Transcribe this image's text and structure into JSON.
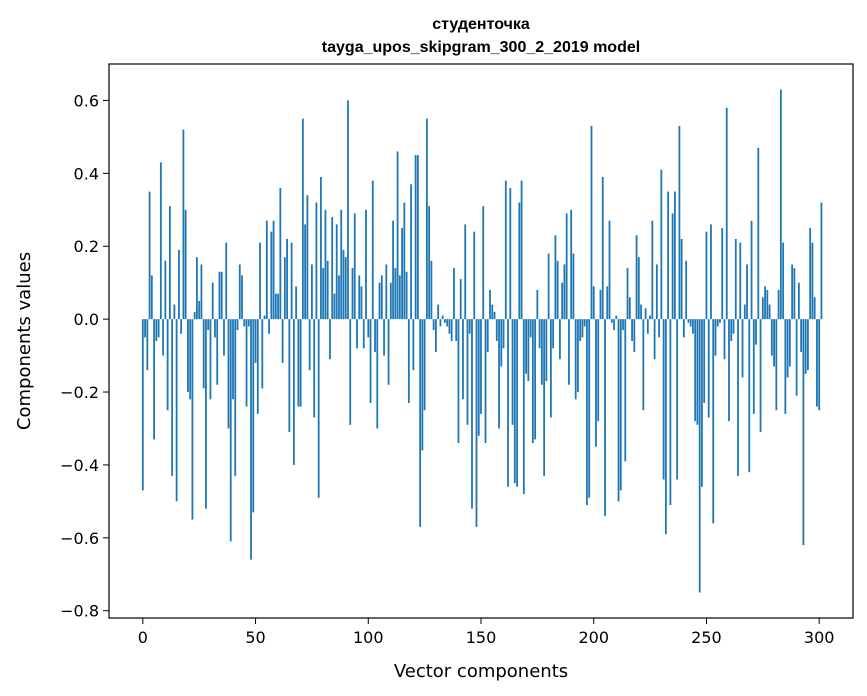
{
  "chart_data": {
    "type": "bar",
    "title_line1": "студенточка",
    "title_line2": "tayga_upos_skipgram_300_2_2019 model",
    "xlabel": "Vector components",
    "ylabel": "Components values",
    "xlim": [
      -15,
      315
    ],
    "ylim": [
      -0.82,
      0.7
    ],
    "xticks": [
      0,
      50,
      100,
      150,
      200,
      250,
      300
    ],
    "xtick_labels": [
      "0",
      "50",
      "100",
      "150",
      "200",
      "250",
      "300"
    ],
    "yticks": [
      -0.8,
      -0.6,
      -0.4,
      -0.2,
      0.0,
      0.2,
      0.4,
      0.6
    ],
    "ytick_labels": [
      "−0.8",
      "−0.6",
      "−0.4",
      "−0.2",
      "0.0",
      "0.2",
      "0.4",
      "0.6"
    ],
    "bar_color": "#1f77b4",
    "values": [
      -0.47,
      -0.05,
      -0.14,
      0.35,
      0.12,
      -0.33,
      -0.06,
      -0.05,
      0.43,
      -0.1,
      0.16,
      -0.25,
      0.31,
      -0.43,
      0.04,
      -0.5,
      0.19,
      -0.04,
      0.52,
      0.3,
      -0.2,
      -0.22,
      -0.55,
      0.02,
      0.17,
      0.05,
      0.15,
      -0.19,
      -0.52,
      -0.03,
      -0.22,
      0.1,
      -0.05,
      -0.18,
      0.13,
      0.13,
      -0.1,
      0.21,
      -0.3,
      -0.61,
      -0.22,
      -0.43,
      -0.03,
      0.15,
      0.12,
      -0.02,
      -0.24,
      -0.02,
      -0.66,
      -0.53,
      -0.12,
      -0.26,
      0.21,
      -0.19,
      0.01,
      0.27,
      -0.04,
      0.24,
      0.27,
      0.07,
      0.07,
      0.36,
      -0.12,
      0.17,
      0.22,
      -0.31,
      0.21,
      -0.4,
      0.09,
      -0.24,
      -0.24,
      0.55,
      0.26,
      0.34,
      -0.14,
      0.15,
      -0.27,
      0.32,
      -0.49,
      0.39,
      0.14,
      0.3,
      0.16,
      -0.11,
      0.28,
      0.07,
      0.26,
      0.12,
      0.3,
      0.19,
      0.17,
      0.6,
      -0.29,
      0.14,
      0.29,
      -0.08,
      0.12,
      0.09,
      -0.08,
      0.3,
      -0.05,
      -0.23,
      0.38,
      -0.09,
      -0.3,
      0.1,
      0.12,
      -0.1,
      0.15,
      -0.18,
      0.1,
      0.27,
      0.14,
      0.46,
      0.12,
      0.25,
      0.32,
      0.13,
      -0.23,
      0.37,
      -0.14,
      0.45,
      0.45,
      -0.57,
      -0.36,
      -0.25,
      0.55,
      0.31,
      0.16,
      -0.03,
      -0.09,
      0.04,
      -0.02,
      0.01,
      -0.01,
      -0.02,
      -0.04,
      -0.06,
      0.14,
      -0.06,
      -0.34,
      0.11,
      -0.22,
      0.26,
      -0.29,
      -0.04,
      -0.52,
      0.24,
      -0.57,
      -0.32,
      -0.26,
      0.31,
      -0.34,
      -0.09,
      0.08,
      0.04,
      0.02,
      -0.06,
      -0.3,
      -0.13,
      -0.08,
      0.38,
      -0.46,
      0.36,
      -0.29,
      -0.45,
      -0.46,
      0.32,
      0.38,
      -0.48,
      -0.15,
      -0.17,
      -0.05,
      -0.34,
      -0.33,
      0.08,
      -0.08,
      -0.18,
      -0.43,
      -0.17,
      0.18,
      -0.27,
      -0.08,
      0.23,
      0.16,
      -0.11,
      0.1,
      0.15,
      0.29,
      -0.18,
      0.3,
      0.18,
      -0.22,
      -0.2,
      -0.06,
      -0.05,
      -0.02,
      -0.51,
      -0.49,
      0.53,
      0.09,
      -0.35,
      -0.28,
      0.08,
      0.39,
      -0.54,
      0.09,
      0.27,
      -0.01,
      -0.03,
      0.01,
      -0.5,
      -0.47,
      -0.03,
      -0.39,
      0.14,
      0.06,
      -0.06,
      -0.09,
      0.23,
      0.17,
      0.04,
      -0.25,
      0.03,
      -0.04,
      0.01,
      0.27,
      -0.11,
      0.15,
      -0.05,
      0.41,
      -0.44,
      -0.59,
      0.35,
      -0.51,
      0.29,
      0.35,
      -0.44,
      0.53,
      0.22,
      -0.05,
      0.16,
      -0.01,
      -0.02,
      -0.04,
      -0.28,
      -0.29,
      -0.75,
      -0.46,
      -0.23,
      0.24,
      -0.27,
      0.26,
      -0.56,
      -0.1,
      -0.02,
      -0.01,
      0.25,
      -0.11,
      0.58,
      -0.28,
      -0.06,
      -0.04,
      0.22,
      -0.43,
      0.21,
      -0.16,
      0.04,
      0.15,
      -0.42,
      0.27,
      -0.26,
      -0.07,
      0.47,
      -0.31,
      0.06,
      0.09,
      0.08,
      0.04,
      -0.1,
      -0.13,
      -0.25,
      0.08,
      0.63,
      0.21,
      -0.26,
      -0.16,
      -0.13,
      0.15,
      0.14,
      -0.21,
      0.1,
      -0.09,
      -0.62,
      -0.15,
      -0.14,
      0.25,
      0.21,
      0.06,
      -0.24,
      -0.25,
      0.32
    ]
  }
}
